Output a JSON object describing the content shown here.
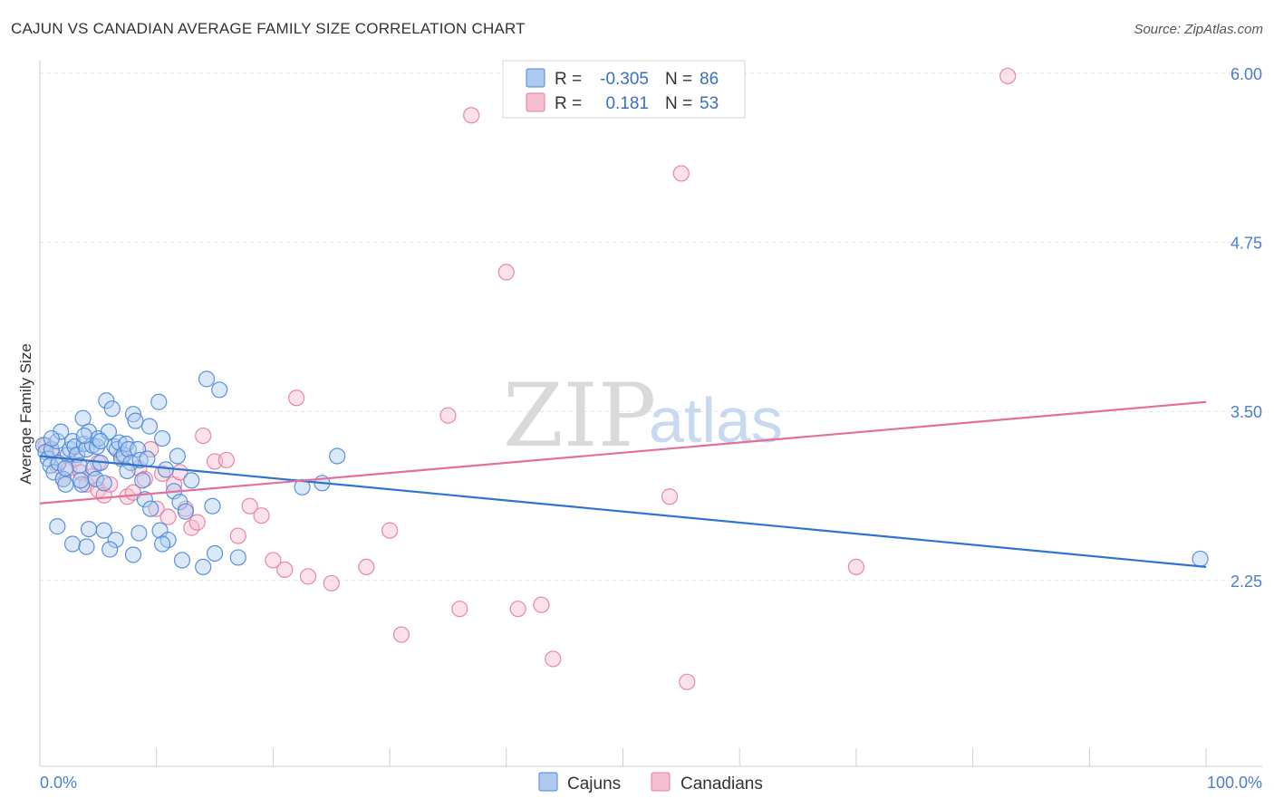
{
  "title": "CAJUN VS CANADIAN AVERAGE FAMILY SIZE CORRELATION CHART",
  "source": "Source: ZipAtlas.com",
  "watermark": {
    "zip": "ZIP",
    "atlas": "atlas"
  },
  "colors": {
    "cajun": "#4a86d8",
    "cajun_fill": "#aecbef",
    "canadian": "#e87aa0",
    "canadian_fill": "#f6bfd1",
    "cajun_line": "#2f74d0",
    "canadian_line": "#e2709a"
  },
  "legend_top": [
    {
      "series": "Cajuns",
      "r_label": "R =",
      "r_value": "-0.305",
      "n_label": "N =",
      "n_value": "86"
    },
    {
      "series": "Canadians",
      "r_label": "R =",
      "r_value": "0.181",
      "n_label": "N =",
      "n_value": "53"
    }
  ],
  "legend_bottom": [
    "Cajuns",
    "Canadians"
  ],
  "chart_data": {
    "type": "scatter",
    "title": "CAJUN VS CANADIAN AVERAGE FAMILY SIZE CORRELATION CHART",
    "xlabel": "",
    "ylabel": "Average Family Size",
    "xlim": [
      0,
      100
    ],
    "ylim": [
      1.05,
      6.1
    ],
    "x_tick_labels": [
      "0.0%",
      "100.0%"
    ],
    "y_ticks": [
      2.25,
      3.5,
      4.75,
      6.0
    ],
    "y_tick_labels": [
      "2.25",
      "3.50",
      "4.75",
      "6.00"
    ],
    "series": [
      {
        "name": "Cajuns",
        "r": -0.305,
        "n": 86,
        "trend": {
          "x": [
            0,
            100
          ],
          "y": [
            3.17,
            2.35
          ]
        },
        "points": [
          [
            0.3,
            3.25
          ],
          [
            0.5,
            3.2
          ],
          [
            0.7,
            3.15
          ],
          [
            0.9,
            3.1
          ],
          [
            1.0,
            3.22
          ],
          [
            1.2,
            3.05
          ],
          [
            1.5,
            3.28
          ],
          [
            1.6,
            3.12
          ],
          [
            1.8,
            3.35
          ],
          [
            2.0,
            3.0
          ],
          [
            2.2,
            2.96
          ],
          [
            2.4,
            3.18
          ],
          [
            2.6,
            3.22
          ],
          [
            2.8,
            3.28
          ],
          [
            3.0,
            3.24
          ],
          [
            3.2,
            3.18
          ],
          [
            3.4,
            3.1
          ],
          [
            3.6,
            2.96
          ],
          [
            3.7,
            3.45
          ],
          [
            3.8,
            3.26
          ],
          [
            4.0,
            3.22
          ],
          [
            4.2,
            3.35
          ],
          [
            4.5,
            3.25
          ],
          [
            4.6,
            3.08
          ],
          [
            4.8,
            3.0
          ],
          [
            4.9,
            3.24
          ],
          [
            5.0,
            3.3
          ],
          [
            5.2,
            3.12
          ],
          [
            5.5,
            2.97
          ],
          [
            5.7,
            3.58
          ],
          [
            5.9,
            3.35
          ],
          [
            6.2,
            3.52
          ],
          [
            6.4,
            3.24
          ],
          [
            6.6,
            3.22
          ],
          [
            6.8,
            3.27
          ],
          [
            7.0,
            3.15
          ],
          [
            7.2,
            3.18
          ],
          [
            7.4,
            3.26
          ],
          [
            7.6,
            3.22
          ],
          [
            7.8,
            3.12
          ],
          [
            8.0,
            3.48
          ],
          [
            8.2,
            3.43
          ],
          [
            8.4,
            3.22
          ],
          [
            8.6,
            3.14
          ],
          [
            8.8,
            2.99
          ],
          [
            9.0,
            2.85
          ],
          [
            9.2,
            3.15
          ],
          [
            9.4,
            3.39
          ],
          [
            10.2,
            3.57
          ],
          [
            10.5,
            3.3
          ],
          [
            10.8,
            3.07
          ],
          [
            11.5,
            2.91
          ],
          [
            11.8,
            3.17
          ],
          [
            12.0,
            2.83
          ],
          [
            13.0,
            2.99
          ],
          [
            14.3,
            3.74
          ],
          [
            15.4,
            3.66
          ],
          [
            22.5,
            2.94
          ],
          [
            24.2,
            2.97
          ],
          [
            25.5,
            3.17
          ],
          [
            1.5,
            2.65
          ],
          [
            2.8,
            2.52
          ],
          [
            3.5,
            2.99
          ],
          [
            4.2,
            2.63
          ],
          [
            5.5,
            2.62
          ],
          [
            6.5,
            2.55
          ],
          [
            8.5,
            2.6
          ],
          [
            9.5,
            2.78
          ],
          [
            10.3,
            2.62
          ],
          [
            11.0,
            2.55
          ],
          [
            12.5,
            2.76
          ],
          [
            14.8,
            2.8
          ],
          [
            15.0,
            2.45
          ],
          [
            17.0,
            2.42
          ],
          [
            4.0,
            2.5
          ],
          [
            6.0,
            2.48
          ],
          [
            8.0,
            2.44
          ],
          [
            10.5,
            2.52
          ],
          [
            12.2,
            2.4
          ],
          [
            14.0,
            2.35
          ],
          [
            1.0,
            3.3
          ],
          [
            2.2,
            3.08
          ],
          [
            3.8,
            3.32
          ],
          [
            5.2,
            3.28
          ],
          [
            7.5,
            3.06
          ],
          [
            99.5,
            2.41
          ]
        ]
      },
      {
        "name": "Canadians",
        "r": 0.181,
        "n": 53,
        "trend": {
          "x": [
            0,
            100
          ],
          "y": [
            2.82,
            3.57
          ]
        },
        "points": [
          [
            0.5,
            3.25
          ],
          [
            1.0,
            3.2
          ],
          [
            1.5,
            3.1
          ],
          [
            2.0,
            3.0
          ],
          [
            2.5,
            3.08
          ],
          [
            3.0,
            3.15
          ],
          [
            3.5,
            3.05
          ],
          [
            4.0,
            2.96
          ],
          [
            4.5,
            3.02
          ],
          [
            5.0,
            2.92
          ],
          [
            5.5,
            2.88
          ],
          [
            6.0,
            2.96
          ],
          [
            7.0,
            3.18
          ],
          [
            7.5,
            2.87
          ],
          [
            8.0,
            2.9
          ],
          [
            8.5,
            3.08
          ],
          [
            9.0,
            3.0
          ],
          [
            9.5,
            3.22
          ],
          [
            10.0,
            2.78
          ],
          [
            10.5,
            3.04
          ],
          [
            11.0,
            2.72
          ],
          [
            11.5,
            2.96
          ],
          [
            12.0,
            3.05
          ],
          [
            12.5,
            2.78
          ],
          [
            13.0,
            2.64
          ],
          [
            13.5,
            2.68
          ],
          [
            14.0,
            3.32
          ],
          [
            15.0,
            3.13
          ],
          [
            16.0,
            3.14
          ],
          [
            17.0,
            2.58
          ],
          [
            18.0,
            2.8
          ],
          [
            19.0,
            2.73
          ],
          [
            20.0,
            2.4
          ],
          [
            21.0,
            2.33
          ],
          [
            22.0,
            3.6
          ],
          [
            23.0,
            2.28
          ],
          [
            25.0,
            2.23
          ],
          [
            28.0,
            2.35
          ],
          [
            30.0,
            2.62
          ],
          [
            31.0,
            1.85
          ],
          [
            35.0,
            3.47
          ],
          [
            36.0,
            2.04
          ],
          [
            37.0,
            5.69
          ],
          [
            40.0,
            4.53
          ],
          [
            41.0,
            2.04
          ],
          [
            43.0,
            2.07
          ],
          [
            44.0,
            1.67
          ],
          [
            54.0,
            2.87
          ],
          [
            55.0,
            5.26
          ],
          [
            55.5,
            1.5
          ],
          [
            70.0,
            2.35
          ],
          [
            83.0,
            5.98
          ],
          [
            5.0,
            3.12
          ]
        ]
      }
    ]
  }
}
